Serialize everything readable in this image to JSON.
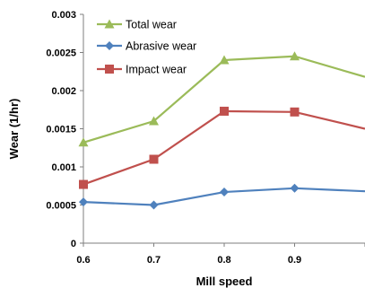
{
  "chart_data": {
    "type": "line",
    "xlabel": "Mill speed",
    "ylabel": "Wear (1/hr)",
    "x": [
      0.6,
      0.7,
      0.8,
      0.9,
      1.0
    ],
    "x_tick_labels": [
      "0.6",
      "0.7",
      "0.8",
      "0.9"
    ],
    "y_tick_labels": [
      "0",
      "0.0005",
      "0.001",
      "0.0015",
      "0.002",
      "0.0025",
      "0.003"
    ],
    "ylim": [
      0,
      0.003
    ],
    "xlim": [
      0.6,
      1.0
    ],
    "grid": false,
    "legend_position": "top-left",
    "series": [
      {
        "name": "Total wear",
        "color": "#9BBB59",
        "marker": "triangle",
        "values": [
          0.00132,
          0.0016,
          0.0024,
          0.00245,
          0.00218
        ]
      },
      {
        "name": "Abrasive wear",
        "color": "#4F81BD",
        "marker": "diamond",
        "values": [
          0.00054,
          0.0005,
          0.00067,
          0.00072,
          0.00068
        ]
      },
      {
        "name": "Impact wear",
        "color": "#C0504D",
        "marker": "square",
        "values": [
          0.00077,
          0.0011,
          0.00173,
          0.00172,
          0.0015
        ]
      }
    ]
  }
}
